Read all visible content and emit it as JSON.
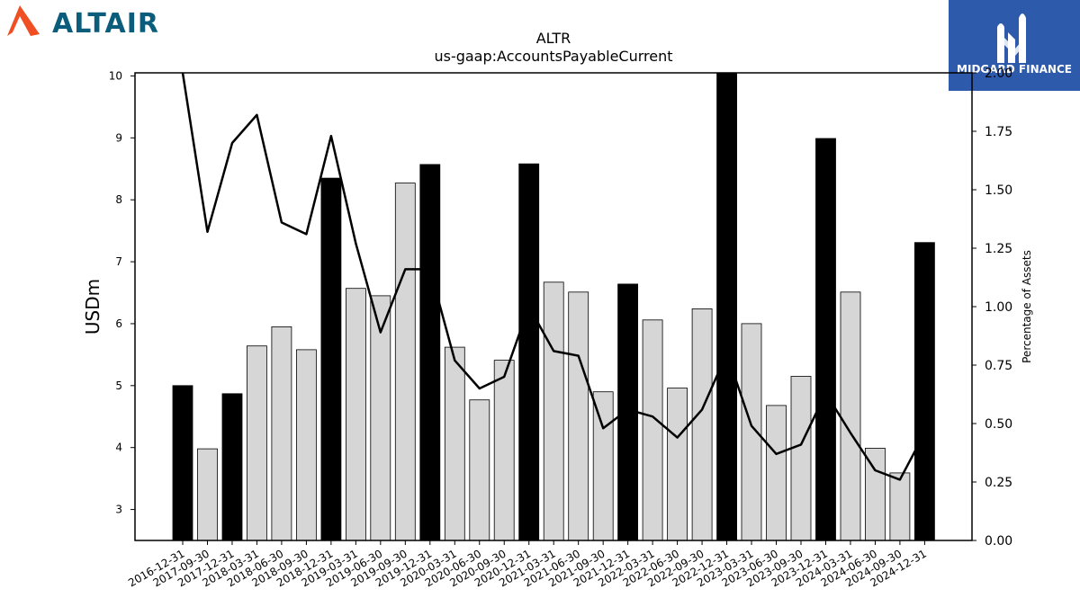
{
  "branding": {
    "left_logo_text": "ALTAIR",
    "left_logo_color": "#0c5d7c",
    "left_logo_icon_color": "#f04e23",
    "right_logo_text": "MIDGARD FINANCE",
    "right_logo_bg": "#2e5aac"
  },
  "chart_data": {
    "type": "bar",
    "title": "ALTR",
    "subtitle": "us-gaap:AccountsPayableCurrent",
    "ylabel": "USDm",
    "y2label": "Percentage of Assets",
    "ylim": [
      2.5,
      10.05
    ],
    "y2lim": [
      0.0,
      2.0
    ],
    "yticks": [
      3,
      4,
      5,
      6,
      7,
      8,
      9,
      10
    ],
    "y2ticks": [
      "0.00",
      "0.25",
      "0.50",
      "0.75",
      "1.00",
      "1.25",
      "1.50",
      "1.75",
      "2.00"
    ],
    "categories": [
      "2016-12-31",
      "2017-09-30",
      "2017-12-31",
      "2018-03-31",
      "2018-06-30",
      "2018-09-30",
      "2018-12-31",
      "2019-03-31",
      "2019-06-30",
      "2019-09-30",
      "2019-12-31",
      "2020-03-31",
      "2020-06-30",
      "2020-09-30",
      "2020-12-31",
      "2021-03-31",
      "2021-06-30",
      "2021-09-30",
      "2021-12-31",
      "2022-03-31",
      "2022-06-30",
      "2022-09-30",
      "2022-12-31",
      "2023-03-31",
      "2023-06-30",
      "2023-09-30",
      "2023-12-31",
      "2024-03-31",
      "2024-06-30",
      "2024-09-30",
      "2024-12-31"
    ],
    "series": [
      {
        "type": "bar",
        "values": [
          5.0,
          3.98,
          4.87,
          5.64,
          5.95,
          5.58,
          8.35,
          6.57,
          6.45,
          8.27,
          8.57,
          5.62,
          4.77,
          5.41,
          8.58,
          6.67,
          6.51,
          4.9,
          6.64,
          6.06,
          4.96,
          6.24,
          10.05,
          6.0,
          4.68,
          5.15,
          8.99,
          6.51,
          3.99,
          3.59,
          7.31
        ],
        "highlight": [
          true,
          false,
          true,
          false,
          false,
          false,
          true,
          false,
          false,
          false,
          true,
          false,
          false,
          false,
          true,
          false,
          false,
          false,
          true,
          false,
          false,
          false,
          true,
          false,
          false,
          false,
          true,
          false,
          false,
          false,
          true
        ]
      },
      {
        "type": "line",
        "axis": "right",
        "values": [
          2.0,
          1.32,
          1.7,
          1.82,
          1.36,
          1.31,
          1.73,
          1.27,
          0.89,
          1.16,
          1.16,
          0.77,
          0.65,
          0.7,
          1.0,
          0.81,
          0.79,
          0.48,
          0.56,
          0.53,
          0.44,
          0.56,
          0.8,
          0.49,
          0.37,
          0.41,
          0.63,
          0.46,
          0.3,
          0.26,
          0.46
        ]
      }
    ],
    "colors": {
      "highlight_bar": "#000000",
      "bar": "#d6d6d6",
      "line": "#000000"
    },
    "grid": false
  }
}
